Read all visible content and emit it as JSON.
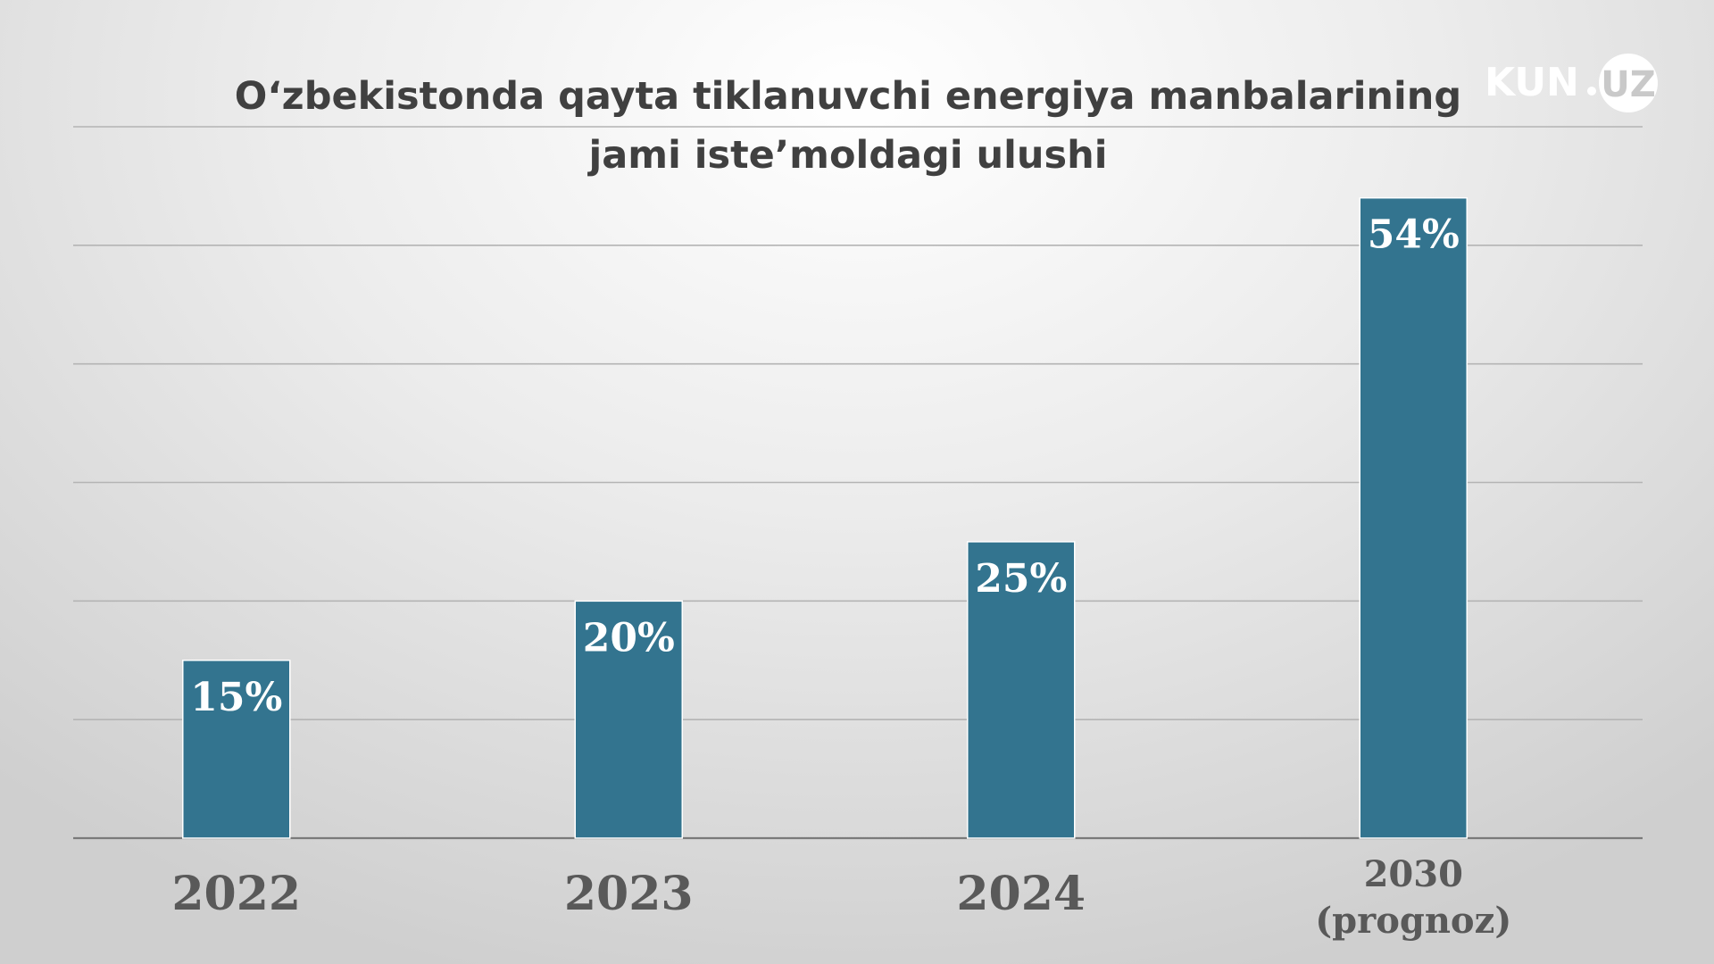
{
  "chart_data": {
    "type": "bar",
    "title": [
      "O‘zbekistonda qayta tiklanuvchi energiya manbalarining",
      "jami iste’moldagi ulushi"
    ],
    "categories": [
      [
        "2022"
      ],
      [
        "2023"
      ],
      [
        "2024"
      ],
      [
        "2030",
        "(prognoz)"
      ]
    ],
    "values": [
      15,
      20,
      25,
      54
    ],
    "data_labels": [
      "15%",
      "20%",
      "25%",
      "54%"
    ],
    "ylim": [
      0,
      60
    ],
    "grid": true,
    "legend": "none",
    "colors": {
      "bar": "#33748f",
      "label": "#ffffff",
      "tick": "#595959",
      "title": "#404040"
    }
  },
  "brand": {
    "logo_text": "KUN.UZ",
    "logo_parts": [
      "KUN",
      "UZ"
    ],
    "logo_color": "#ffffff"
  }
}
